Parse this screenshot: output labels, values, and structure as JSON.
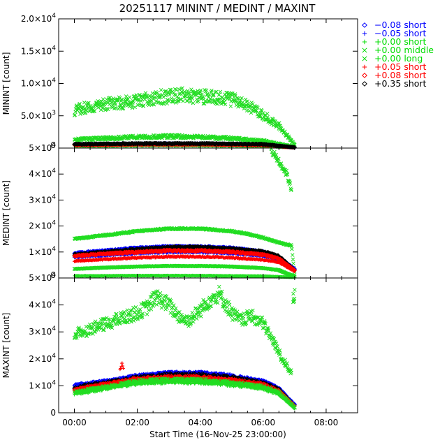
{
  "chart_data": {
    "type": "scatter",
    "title": "20251117 MININT / MEDINT / MAXINT",
    "xlabel": "Start Time (16-Nov-25 23:00:00)",
    "x_unit": "hours",
    "xlim": [
      -0.5,
      9.0
    ],
    "xticks": [
      {
        "value": 0,
        "label": "00:00"
      },
      {
        "value": 2,
        "label": "02:00"
      },
      {
        "value": 4,
        "label": "04:00"
      },
      {
        "value": 6,
        "label": "06:00"
      },
      {
        "value": 8,
        "label": "08:00"
      }
    ],
    "legend_position": "right",
    "legend": [
      {
        "marker": "diamond",
        "color": "#0000ff",
        "sign": "−",
        "value": "0.08",
        "name": "short"
      },
      {
        "marker": "plus",
        "color": "#0000ff",
        "sign": "−",
        "value": "0.05",
        "name": "short"
      },
      {
        "marker": "plus",
        "color": "#00dd00",
        "sign": "+",
        "value": "0.00",
        "name": "short"
      },
      {
        "marker": "cross",
        "color": "#00dd00",
        "sign": "+",
        "value": "0.00",
        "name": "middle"
      },
      {
        "marker": "cross",
        "color": "#00dd00",
        "sign": "+",
        "value": "0.00",
        "name": "long"
      },
      {
        "marker": "plus",
        "color": "#ff0000",
        "sign": "+",
        "value": "0.05",
        "name": "short"
      },
      {
        "marker": "diamond",
        "color": "#ff0000",
        "sign": "+",
        "value": "0.08",
        "name": "short"
      },
      {
        "marker": "diamond",
        "color": "#000000",
        "sign": "+",
        "value": "0.35",
        "name": "short"
      }
    ],
    "panels": [
      {
        "ylabel": "MININT [count]",
        "ylim": [
          0,
          20000
        ],
        "yticks": [
          {
            "value": 0,
            "mant": "0",
            "exp": ""
          },
          {
            "value": 5000,
            "mant": "5.0×10",
            "exp": "3"
          },
          {
            "value": 10000,
            "mant": "1.0×10",
            "exp": "4"
          },
          {
            "value": 15000,
            "mant": "1.5×10",
            "exp": "4"
          },
          {
            "value": 20000,
            "mant": "2.0×10",
            "exp": "4"
          }
        ],
        "series": [
          {
            "name": "+0.00 long",
            "marker": "cross",
            "color": "#22dd22",
            "x": [
              0,
              0.5,
              1,
              1.5,
              2,
              2.5,
              3,
              3.5,
              4,
              4.5,
              5,
              5.5,
              6,
              6.5,
              7
            ],
            "y": [
              5800,
              6500,
              6800,
              7000,
              7300,
              7800,
              8000,
              8200,
              8000,
              7800,
              7500,
              6600,
              5100,
              3500,
              500
            ],
            "noise": 0.14
          },
          {
            "name": "+0.00 middle",
            "marker": "cross",
            "color": "#22dd22",
            "x": [
              0,
              1,
              2,
              3,
              4,
              5,
              6,
              7
            ],
            "y": [
              1300,
              1500,
              1700,
              1800,
              1700,
              1500,
              1100,
              200
            ],
            "noise": 0.15
          },
          {
            "name": "+0.00 short",
            "marker": "plus",
            "color": "#22dd22",
            "x": [
              0,
              2,
              4,
              6,
              7
            ],
            "y": [
              300,
              400,
              400,
              300,
              50
            ],
            "noise": 0.2
          },
          {
            "name": "−0.08 short",
            "marker": "diamond",
            "color": "#0000ff",
            "x": [
              0,
              2,
              4,
              6,
              7
            ],
            "y": [
              550,
              650,
              650,
              550,
              80
            ],
            "noise": 0.1
          },
          {
            "name": "−0.05 short",
            "marker": "plus",
            "color": "#0000ff",
            "x": [
              0,
              2,
              4,
              6,
              7
            ],
            "y": [
              500,
              600,
              600,
              500,
              80
            ],
            "noise": 0.1
          },
          {
            "name": "+0.05 short",
            "marker": "plus",
            "color": "#ff0000",
            "x": [
              0,
              2,
              4,
              6,
              7
            ],
            "y": [
              450,
              550,
              550,
              450,
              80
            ],
            "noise": 0.1
          },
          {
            "name": "+0.08 short",
            "marker": "diamond",
            "color": "#ff0000",
            "x": [
              0,
              2,
              4,
              6,
              7
            ],
            "y": [
              480,
              580,
              580,
              480,
              80
            ],
            "noise": 0.1
          },
          {
            "name": "+0.35 short",
            "marker": "diamond",
            "color": "#000000",
            "x": [
              0,
              2,
              4,
              6,
              7
            ],
            "y": [
              600,
              700,
              700,
              600,
              100
            ],
            "noise": 0.1
          }
        ]
      },
      {
        "ylabel": "MEDINT [count]",
        "ylim": [
          0,
          50000
        ],
        "yticks": [
          {
            "value": 0,
            "mant": "0",
            "exp": ""
          },
          {
            "value": 10000,
            "mant": "1×10",
            "exp": "4"
          },
          {
            "value": 20000,
            "mant": "2×10",
            "exp": "4"
          },
          {
            "value": 30000,
            "mant": "3×10",
            "exp": "4"
          },
          {
            "value": 40000,
            "mant": "4×10",
            "exp": "4"
          },
          {
            "value": 50000,
            "mant": "5×10",
            "exp": "4"
          }
        ],
        "series": [
          {
            "name": "+0.00 long",
            "marker": "cross",
            "color": "#22dd22",
            "x": [
              0,
              1,
              2,
              3,
              4,
              5,
              5.5,
              6,
              6.4,
              6.7,
              6.9,
              7
            ],
            "y": [
              15000,
              16500,
              18000,
              19000,
              19000,
              18000,
              17000,
              15500,
              14000,
              13000,
              12500,
              1000
            ],
            "noise": 0.015
          },
          {
            "name": "+0.00 long (upper branch)",
            "marker": "cross",
            "color": "#22dd22",
            "x": [
              6.25,
              6.5,
              6.75,
              6.9
            ],
            "y": [
              49000,
              45000,
              40000,
              34000
            ],
            "noise": 0.03
          },
          {
            "name": "−0.08 short",
            "marker": "diamond",
            "color": "#0000ff",
            "x": [
              0,
              1,
              2,
              3,
              4,
              5,
              6,
              6.5,
              7
            ],
            "y": [
              9500,
              10500,
              11500,
              12000,
              12000,
              11500,
              10000,
              8000,
              3500
            ],
            "noise": 0.03
          },
          {
            "name": "−0.05 short",
            "marker": "plus",
            "color": "#0000ff",
            "x": [
              0,
              1,
              2,
              3,
              4,
              5,
              6,
              6.5,
              7
            ],
            "y": [
              8000,
              8800,
              9500,
              10000,
              10000,
              9500,
              8500,
              7000,
              3000
            ],
            "noise": 0.03
          },
          {
            "name": "+0.35 short",
            "marker": "diamond",
            "color": "#000000",
            "x": [
              0,
              1,
              2,
              3,
              4,
              5,
              6,
              6.5,
              7
            ],
            "y": [
              9000,
              10000,
              11000,
              11800,
              11800,
              11200,
              10200,
              8500,
              3000
            ],
            "noise": 0.03
          },
          {
            "name": "+0.08 short",
            "marker": "diamond",
            "color": "#ff0000",
            "x": [
              0,
              1,
              2,
              3,
              4,
              5,
              6,
              6.5,
              7
            ],
            "y": [
              8500,
              9300,
              10000,
              10500,
              10500,
              10000,
              9000,
              7500,
              3000
            ],
            "noise": 0.03
          },
          {
            "name": "+0.05 short",
            "marker": "plus",
            "color": "#ff0000",
            "x": [
              0,
              1,
              2,
              3,
              4,
              5,
              6,
              6.5,
              7
            ],
            "y": [
              6500,
              7200,
              7800,
              8200,
              8200,
              7800,
              7000,
              6000,
              2500
            ],
            "noise": 0.03
          },
          {
            "name": "+0.00 middle",
            "marker": "cross",
            "color": "#22dd22",
            "x": [
              0,
              1,
              2,
              3,
              4,
              5,
              6,
              6.5,
              7
            ],
            "y": [
              3500,
              4000,
              4400,
              4600,
              4600,
              4400,
              3800,
              3000,
              500
            ],
            "noise": 0.03
          },
          {
            "name": "+0.00 short",
            "marker": "plus",
            "color": "#22dd22",
            "x": [
              0,
              2,
              4,
              6,
              7
            ],
            "y": [
              800,
              900,
              900,
              700,
              200
            ],
            "noise": 0.1
          }
        ]
      },
      {
        "ylabel": "MAXINT [count]",
        "ylim": [
          0,
          50000
        ],
        "yticks": [
          {
            "value": 0,
            "mant": "0",
            "exp": ""
          },
          {
            "value": 10000,
            "mant": "1×10",
            "exp": "4"
          },
          {
            "value": 20000,
            "mant": "2×10",
            "exp": "4"
          },
          {
            "value": 30000,
            "mant": "3×10",
            "exp": "4"
          },
          {
            "value": 40000,
            "mant": "4×10",
            "exp": "4"
          },
          {
            "value": 50000,
            "mant": "5×10",
            "exp": "4"
          }
        ],
        "series": [
          {
            "name": "+0.00 long",
            "marker": "cross",
            "color": "#22dd22",
            "x": [
              0,
              0.5,
              1,
              1.5,
              2,
              2.3,
              2.6,
              3,
              3.3,
              3.6,
              4,
              4.3,
              4.6,
              5,
              5.3,
              5.6,
              6,
              6.3,
              6.6,
              6.9
            ],
            "y": [
              29000,
              31000,
              33000,
              35000,
              37000,
              39000,
              43000,
              40000,
              36000,
              34000,
              38000,
              42000,
              44000,
              37000,
              34000,
              36000,
              33000,
              27000,
              20000,
              15000
            ],
            "noise": 0.07
          },
          {
            "name": "+0.00 long (spike)",
            "marker": "cross",
            "color": "#22dd22",
            "x": [
              6.95,
              7.0
            ],
            "y": [
              40000,
              42000
            ],
            "noise": 0.1
          },
          {
            "name": "−0.08 short",
            "marker": "diamond",
            "color": "#0000ff",
            "x": [
              0,
              0.5,
              1,
              1.5,
              2,
              3,
              4,
              5,
              6,
              6.5,
              7
            ],
            "y": [
              10000,
              11000,
              11500,
              12500,
              13500,
              14500,
              14500,
              13500,
              11500,
              9000,
              3000
            ],
            "noise": 0.05
          },
          {
            "name": "−0.05 short",
            "marker": "plus",
            "color": "#0000ff",
            "x": [
              0,
              0.5,
              1,
              1.5,
              2,
              3,
              4,
              5,
              6,
              6.5,
              7
            ],
            "y": [
              9500,
              10500,
              11500,
              12500,
              13500,
              14500,
              14500,
              13500,
              11500,
              9000,
              3000
            ],
            "noise": 0.06
          },
          {
            "name": "+0.35 short",
            "marker": "diamond",
            "color": "#000000",
            "x": [
              0,
              0.5,
              1,
              1.5,
              2,
              3,
              4,
              5,
              6,
              6.5,
              7
            ],
            "y": [
              9000,
              10500,
              11000,
              12000,
              13000,
              14000,
              14000,
              13000,
              11000,
              8500,
              2500
            ],
            "noise": 0.05
          },
          {
            "name": "+0.08 short",
            "marker": "diamond",
            "color": "#ff0000",
            "x": [
              0,
              0.5,
              1,
              1.5,
              2,
              3,
              4,
              5,
              6,
              6.5,
              7
            ],
            "y": [
              8500,
              9500,
              10500,
              11500,
              12500,
              13000,
              13000,
              12000,
              10500,
              8000,
              2500
            ],
            "noise": 0.05
          },
          {
            "name": "+0.05 short",
            "marker": "plus",
            "color": "#ff0000",
            "x": [
              0,
              0.5,
              1,
              1.5,
              2,
              3,
              4,
              5,
              6,
              6.5,
              7
            ],
            "y": [
              8000,
              9000,
              10000,
              11000,
              12000,
              12500,
              12500,
              11500,
              10000,
              7500,
              2500
            ],
            "noise": 0.06
          },
          {
            "name": "+0.00 short",
            "marker": "plus",
            "color": "#22dd22",
            "x": [
              0,
              0.5,
              1,
              1.5,
              2,
              3,
              4,
              5,
              6,
              6.5,
              7
            ],
            "y": [
              7000,
              8000,
              9000,
              10000,
              11000,
              11500,
              11500,
              10500,
              9000,
              7000,
              1500
            ],
            "noise": 0.07
          },
          {
            "name": "+0.00 middle",
            "marker": "cross",
            "color": "#22dd22",
            "x": [
              0,
              0.5,
              1,
              1.5,
              2,
              3,
              4,
              5,
              6,
              6.5,
              7
            ],
            "y": [
              7500,
              8500,
              9500,
              10500,
              11500,
              12000,
              12000,
              11000,
              9500,
              7500,
              2000
            ],
            "noise": 0.07
          },
          {
            "name": "spike 01:30",
            "marker": "plus",
            "color": "#ff0000",
            "x": [
              1.45,
              1.5,
              1.55
            ],
            "y": [
              16000,
              18500,
              16500
            ],
            "noise": 0.05
          }
        ]
      }
    ]
  }
}
